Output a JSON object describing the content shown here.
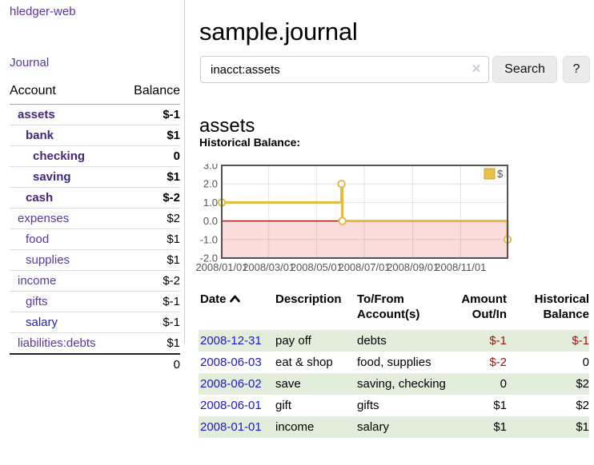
{
  "sidebar": {
    "app_title": "hledger-web",
    "nav": {
      "journal_label": "Journal"
    },
    "accounts_table": {
      "headers": {
        "account": "Account",
        "balance": "Balance"
      },
      "rows": [
        {
          "account": "assets",
          "balance": "$-1",
          "indent": 1,
          "bold": true,
          "balance_style": "neg",
          "link_style": "purple"
        },
        {
          "account": "bank",
          "balance": "$1",
          "indent": 2,
          "bold": true,
          "balance_style": "pos",
          "link_style": "purple"
        },
        {
          "account": "checking",
          "balance": "0",
          "indent": 3,
          "bold": true,
          "balance_style": "pos",
          "link_style": "purple"
        },
        {
          "account": "saving",
          "balance": "$1",
          "indent": 3,
          "bold": true,
          "balance_style": "pos",
          "link_style": "purple"
        },
        {
          "account": "cash",
          "balance": "$-2",
          "indent": 2,
          "bold": true,
          "balance_style": "neg",
          "link_style": "purple"
        },
        {
          "account": "expenses",
          "balance": "$2",
          "indent": 1,
          "bold": false,
          "balance_style": "pos",
          "link_style": "purple"
        },
        {
          "account": "food",
          "balance": "$1",
          "indent": 2,
          "bold": false,
          "balance_style": "pos",
          "link_style": "purple"
        },
        {
          "account": "supplies",
          "balance": "$1",
          "indent": 2,
          "bold": false,
          "balance_style": "pos",
          "link_style": "purple"
        },
        {
          "account": "income",
          "balance": "$-2",
          "indent": 1,
          "bold": false,
          "balance_style": "dimneg",
          "link_style": "purple"
        },
        {
          "account": "gifts",
          "balance": "$-1",
          "indent": 2,
          "bold": false,
          "balance_style": "dimneg",
          "link_style": "purple"
        },
        {
          "account": "salary",
          "balance": "$-1",
          "indent": 2,
          "bold": false,
          "balance_style": "dimneg",
          "link_style": "blue"
        },
        {
          "account": "liabilities:debts",
          "balance": "$1",
          "indent": 1,
          "bold": false,
          "balance_style": "pos",
          "link_style": "purple"
        }
      ],
      "total": "0"
    }
  },
  "main": {
    "title": "sample.journal",
    "search": {
      "query": "inacct:assets",
      "clear_icon": "✕",
      "button_label": "Search",
      "help_label": "?"
    },
    "account_heading": "assets",
    "chart_heading": "Historical Balance:"
  },
  "chart_data": {
    "type": "line",
    "style": "step",
    "title": "Historical Balance:",
    "series": [
      {
        "name": "$",
        "color": "#e2ba3c",
        "points": [
          {
            "date": "2008-01-01",
            "value": 1
          },
          {
            "date": "2008-06-02",
            "value": 2
          },
          {
            "date": "2008-06-03",
            "value": 0
          },
          {
            "date": "2008-12-31",
            "value": -1
          }
        ]
      }
    ],
    "x_range": [
      "2008-01-01",
      "2008-12-31"
    ],
    "ylim": [
      -2,
      3
    ],
    "y_ticks": [
      {
        "value": 3,
        "label": "3.0"
      },
      {
        "value": 2,
        "label": "2.0"
      },
      {
        "value": 1,
        "label": "1.0"
      },
      {
        "value": 0,
        "label": "0.0"
      },
      {
        "value": -1,
        "label": "-1.0"
      },
      {
        "value": -2,
        "label": "-2.0"
      }
    ],
    "x_ticks": [
      {
        "date": "2008-01-01",
        "label": "2008/01/01"
      },
      {
        "date": "2008-03-01",
        "label": "2008/03/01"
      },
      {
        "date": "2008-05-01",
        "label": "2008/05/01"
      },
      {
        "date": "2008-07-01",
        "label": "2008/07/01"
      },
      {
        "date": "2008-09-01",
        "label": "2008/09/01"
      },
      {
        "date": "2008-11-01",
        "label": "2008/11/01"
      }
    ],
    "legend": {
      "label": "$",
      "position": "top-right",
      "swatch_color": "#e8c34a"
    },
    "zero_line_color": "#8e1414",
    "negative_region_color": "#fadcdc",
    "grid_color": "#e4e4e4",
    "border_color": "#545454",
    "grid_on": true
  },
  "register_table": {
    "headers": {
      "date": "Date",
      "description": "Description",
      "accounts": "To/From Account(s)",
      "amount": "Amount Out/In",
      "balance": "Historical Balance"
    },
    "sort": {
      "column": "date",
      "direction": "asc"
    },
    "rows": [
      {
        "date": "2008-12-31",
        "description": "pay off",
        "accounts": "debts",
        "amount": "$-1",
        "balance": "$-1"
      },
      {
        "date": "2008-06-03",
        "description": "eat & shop",
        "accounts": "food, supplies",
        "amount": "$-2",
        "balance": "0"
      },
      {
        "date": "2008-06-02",
        "description": "save",
        "accounts": "saving, checking",
        "amount": "0",
        "balance": "$2"
      },
      {
        "date": "2008-06-01",
        "description": "gift",
        "accounts": "gifts",
        "amount": "$1",
        "balance": "$2"
      },
      {
        "date": "2008-01-01",
        "description": "income",
        "accounts": "salary",
        "amount": "$1",
        "balance": "$1"
      }
    ]
  }
}
